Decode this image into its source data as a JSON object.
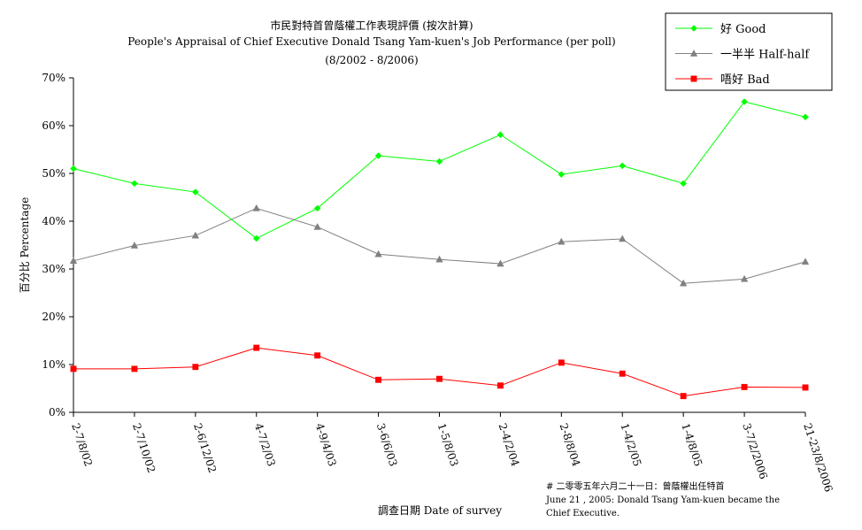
{
  "chart_data": {
    "type": "line",
    "title_lines": [
      "市民對特首曾蔭權工作表現評價 (按次計算)",
      "People's Appraisal of Chief Executive Donald Tsang Yam-kuen's Job Performance (per poll)",
      "(8/2002 - 8/2006)"
    ],
    "xlabel": "調查日期 Date of survey",
    "ylabel": "百分比 Percentage",
    "ylim": [
      0,
      70
    ],
    "yticks": [
      0,
      10,
      20,
      30,
      40,
      50,
      60,
      70
    ],
    "ytick_labels": [
      "0%",
      "10%",
      "20%",
      "30%",
      "40%",
      "50%",
      "60%",
      "70%"
    ],
    "categories": [
      "2-7/8/02",
      "2-7/10/02",
      "2-6/12/02",
      "4-7/2/03",
      "4-9/4/03",
      "3-6/6/03",
      "1-5/8/03",
      "2-4/2/04",
      "2-8/8/04",
      "1-4/2/05",
      "1-4/8/05",
      "3-7/2/2006",
      "21-23/8/2006"
    ],
    "series": [
      {
        "name": "好 Good",
        "color": "#00ff00",
        "marker": "diamond",
        "values": [
          51.0,
          47.9,
          46.1,
          36.4,
          42.7,
          53.7,
          52.5,
          58.1,
          49.8,
          51.6,
          47.9,
          65.0,
          61.8
        ]
      },
      {
        "name": "一半半 Half-half",
        "color": "#808080",
        "marker": "triangle",
        "values": [
          31.7,
          34.9,
          37.0,
          42.7,
          38.8,
          33.1,
          32.0,
          31.1,
          35.7,
          36.3,
          27.0,
          27.9,
          31.5
        ]
      },
      {
        "name": "唔好 Bad",
        "color": "#ff0000",
        "marker": "square",
        "values": [
          9.1,
          9.1,
          9.5,
          13.5,
          11.9,
          6.8,
          7.0,
          5.6,
          10.4,
          8.1,
          3.4,
          5.3,
          5.2
        ]
      }
    ],
    "legend_position": "top-right",
    "grid": false
  },
  "footnote": {
    "line1": "# 二零零五年六月二十一日：曾蔭權出任特首",
    "line2": "June 21 , 2005: Donald Tsang Yam-kuen became the",
    "line3": "Chief Executive."
  }
}
